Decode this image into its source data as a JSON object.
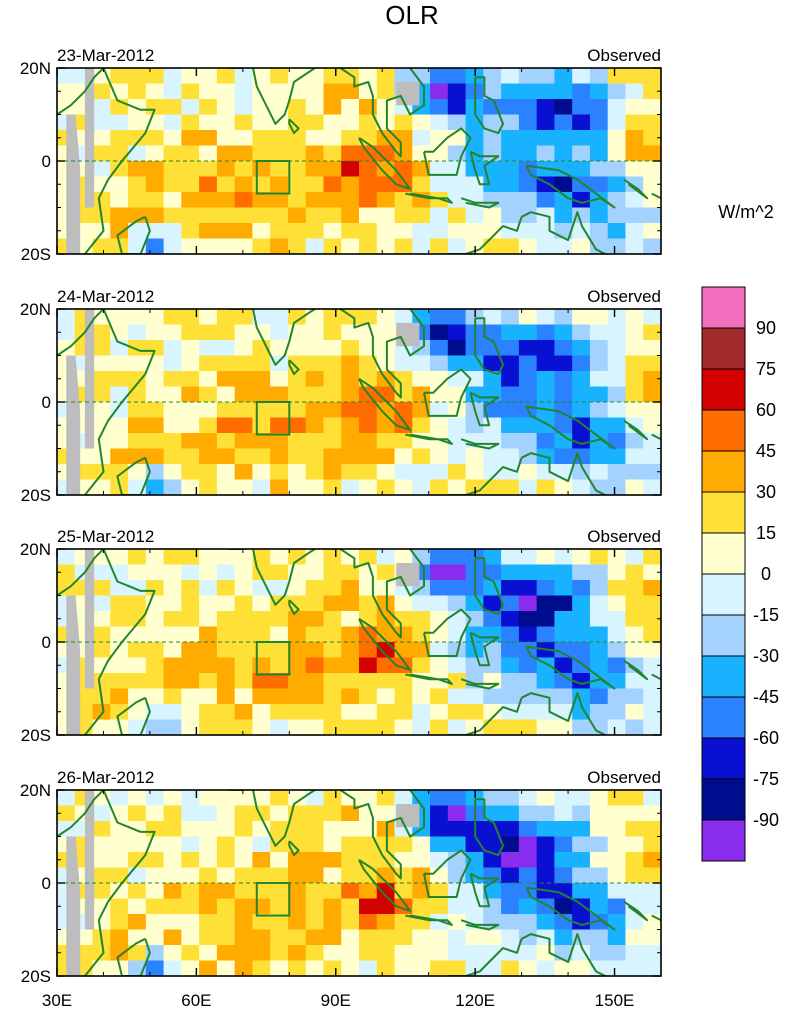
{
  "chart_data": {
    "type": "heatmap",
    "title": "OLR",
    "units": "W/m^2",
    "x_range": [
      30,
      160
    ],
    "y_range": [
      -20,
      20
    ],
    "x_ticks": [
      {
        "value": 30,
        "label": "30E"
      },
      {
        "value": 60,
        "label": "60E"
      },
      {
        "value": 90,
        "label": "90E"
      },
      {
        "value": 120,
        "label": "120E"
      },
      {
        "value": 150,
        "label": "150E"
      }
    ],
    "y_ticks": [
      {
        "value": 20,
        "label": "20N"
      },
      {
        "value": 0,
        "label": "0"
      },
      {
        "value": -20,
        "label": "20S"
      }
    ],
    "colorbar": {
      "levels": [
        "90",
        "75",
        "60",
        "45",
        "30",
        "15",
        "0",
        "-15",
        "-30",
        "-45",
        "-60",
        "-75",
        "-90"
      ],
      "colors": [
        "#f36fbd",
        "#a12a2a",
        "#d30000",
        "#ff6d00",
        "#ffab00",
        "#ffe036",
        "#ffffd0",
        "#d8f5ff",
        "#a4d2ff",
        "#19b2ff",
        "#2a82ff",
        "#0a10d2",
        "#000c8e",
        "#8a2cee"
      ]
    },
    "box_region": {
      "lon": [
        73,
        80
      ],
      "lat": [
        -7,
        0
      ]
    },
    "panels": [
      {
        "date": "23-Mar-2012",
        "label": "Observed"
      },
      {
        "date": "24-Mar-2012",
        "label": "Observed"
      },
      {
        "date": "25-Mar-2012",
        "label": "Observed"
      },
      {
        "date": "26-Mar-2012",
        "label": "Observed"
      }
    ]
  }
}
